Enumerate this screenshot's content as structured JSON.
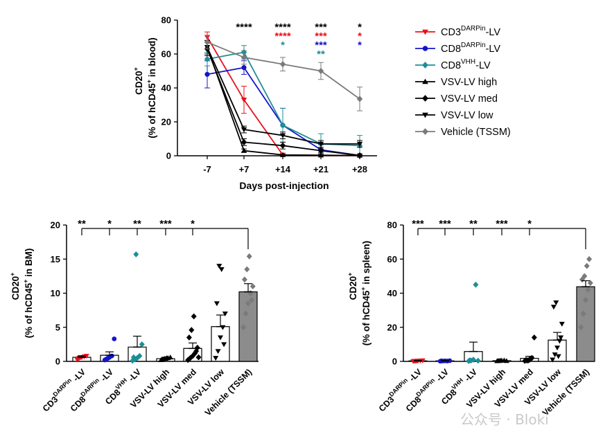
{
  "watermark": "公众号 · Bloki",
  "colors": {
    "red": "#e8101c",
    "blue": "#1414c8",
    "teal": "#1e8e96",
    "black": "#000000",
    "grey": "#7a7a7a",
    "bar_fill": "#8c8c8c"
  },
  "chart_data": [
    {
      "id": "blood",
      "type": "line",
      "ylabel_line1": "CD20",
      "ylabel_sup1": "+",
      "ylabel_line2a": "(% of hCD45",
      "ylabel_sup2": "+",
      "ylabel_line2b": " in blood)",
      "xlabel": "Days post-injection",
      "ylim": [
        0,
        80
      ],
      "yticks": [
        "0",
        "20",
        "40",
        "60",
        "80"
      ],
      "x": [
        "-7",
        "+7",
        "+14",
        "+21",
        "+28"
      ],
      "series": [
        {
          "name": "CD3DARPin-LV",
          "label_main": "CD3",
          "label_sup": "DARPin",
          "label_tail": "-LV",
          "color": "#e8101c",
          "marker": "tri-down",
          "values": [
            70,
            33,
            0.5,
            0.3,
            0.2
          ],
          "err": [
            3,
            8,
            0.5,
            0.5,
            0.3
          ]
        },
        {
          "name": "CD8DARPin-LV",
          "label_main": "CD8",
          "label_sup": "DARPin",
          "label_tail": "-LV",
          "color": "#1414c8",
          "marker": "circle",
          "values": [
            48,
            52,
            18,
            3.5,
            0.2
          ],
          "err": [
            8,
            4,
            10,
            3,
            0.3
          ]
        },
        {
          "name": "CD8VHH-LV",
          "label_main": "CD8",
          "label_sup": "VHH",
          "label_tail": "-LV",
          "color": "#1e8e96",
          "marker": "diamond",
          "values": [
            57,
            61,
            18,
            7,
            6
          ],
          "err": [
            4,
            4,
            10,
            6,
            6
          ]
        },
        {
          "name": "VSV-LV high",
          "label_main": "VSV-LV high",
          "label_sup": "",
          "label_tail": "",
          "color": "#000000",
          "marker": "tri-up",
          "values": [
            64,
            3,
            0.5,
            0.3,
            0.2
          ],
          "err": [
            4,
            1,
            0.3,
            0.3,
            0.2
          ]
        },
        {
          "name": "VSV-LV med",
          "label_main": "VSV-LV med",
          "label_sup": "",
          "label_tail": "",
          "color": "#000000",
          "marker": "diamond",
          "values": [
            63,
            8,
            6,
            3,
            0.2
          ],
          "err": [
            4,
            2,
            2,
            1,
            0.2
          ]
        },
        {
          "name": "VSV-LV low",
          "label_main": "VSV-LV low",
          "label_sup": "",
          "label_tail": "",
          "color": "#000000",
          "marker": "tri-down",
          "values": [
            64,
            15.5,
            12,
            7,
            7
          ],
          "err": [
            4,
            2,
            2,
            2,
            2
          ]
        },
        {
          "name": "Vehicle (TSSM)",
          "label_main": "Vehicle (TSSM)",
          "label_sup": "",
          "label_tail": "",
          "color": "#7a7a7a",
          "marker": "diamond",
          "values": [
            67,
            58,
            54,
            50,
            33.5
          ],
          "err": [
            4,
            4,
            4,
            5,
            7
          ]
        }
      ],
      "significance": [
        {
          "x": "+7",
          "row": 0,
          "text": "****",
          "color": "#000000"
        },
        {
          "x": "+14",
          "row": 0,
          "text": "****",
          "color": "#000000"
        },
        {
          "x": "+14",
          "row": 1,
          "text": "****",
          "color": "#e8101c"
        },
        {
          "x": "+14",
          "row": 2,
          "text": "*",
          "color": "#1e8e96"
        },
        {
          "x": "+21",
          "row": 0,
          "text": "***",
          "color": "#000000"
        },
        {
          "x": "+21",
          "row": 1,
          "text": "***",
          "color": "#e8101c"
        },
        {
          "x": "+21",
          "row": 2,
          "text": "***",
          "color": "#1414c8"
        },
        {
          "x": "+21",
          "row": 3,
          "text": "**",
          "color": "#1e8e96"
        },
        {
          "x": "+28",
          "row": 0,
          "text": "*",
          "color": "#000000"
        },
        {
          "x": "+28",
          "row": 1,
          "text": "*",
          "color": "#e8101c"
        },
        {
          "x": "+28",
          "row": 2,
          "text": "*",
          "color": "#1414c8"
        }
      ]
    },
    {
      "id": "bm",
      "type": "bar",
      "ylabel_line1": "CD20",
      "ylabel_sup1": "+",
      "ylabel_line2a": "(% of hCD45",
      "ylabel_sup2": "+",
      "ylabel_line2b": " in BM)",
      "ylim": [
        0,
        20
      ],
      "yticks": [
        "0",
        "5",
        "10",
        "15",
        "20"
      ],
      "categories": [
        {
          "main": "CD3",
          "sup": "DARPin",
          "tail": " -LV"
        },
        {
          "main": "CD8",
          "sup": "DARPin",
          "tail": " -LV"
        },
        {
          "main": "CD8",
          "sup": "VHH",
          "tail": " -LV"
        },
        {
          "main": "VSV-LV high",
          "sup": "",
          "tail": ""
        },
        {
          "main": "VSV-LV med",
          "sup": "",
          "tail": ""
        },
        {
          "main": "VSV-LV low",
          "sup": "",
          "tail": ""
        },
        {
          "main": "Vehicle (TSSM)",
          "sup": "",
          "tail": ""
        }
      ],
      "values": [
        0.6,
        0.9,
        2.1,
        0.4,
        1.9,
        5.1,
        10.2
      ],
      "sem": [
        0.2,
        0.5,
        1.6,
        0.2,
        0.8,
        1.7,
        1.2
      ],
      "points": [
        [
          0.3,
          0.5,
          0.6,
          0.7,
          0.8,
          0.4,
          0.6
        ],
        [
          0.2,
          0.4,
          0.6,
          0.8,
          3.3,
          0.3,
          0.5
        ],
        [
          0.1,
          0.3,
          0.5,
          0.8,
          2.5,
          0.6,
          15.7
        ],
        [
          0.2,
          0.3,
          0.4,
          0.5,
          0.6,
          0.3,
          0.4,
          0.5
        ],
        [
          0.2,
          0.5,
          0.8,
          1.2,
          2.0,
          3.5,
          4.6,
          6.6,
          1.5,
          0.6
        ],
        [
          0.5,
          1.5,
          3.5,
          5.0,
          7.0,
          8.5,
          14.0,
          13.5,
          2.5
        ],
        [
          5.0,
          7.0,
          8.5,
          10.0,
          11.0,
          12.0,
          13.5,
          15.4,
          9.0
        ]
      ],
      "significance": [
        "**",
        "*",
        "**",
        "***",
        "*"
      ]
    },
    {
      "id": "spleen",
      "type": "bar",
      "ylabel_line1": "CD20",
      "ylabel_sup1": "+",
      "ylabel_line2a": "(% of hCD45",
      "ylabel_sup2": "+",
      "ylabel_line2b": " in spleen)",
      "ylim": [
        0,
        80
      ],
      "yticks": [
        "0",
        "20",
        "40",
        "60",
        "80"
      ],
      "categories": [
        {
          "main": "CD3",
          "sup": "DARPin",
          "tail": " -LV"
        },
        {
          "main": "CD8",
          "sup": "DARPin",
          "tail": " -LV"
        },
        {
          "main": "CD8",
          "sup": "VHH",
          "tail": " -LV"
        },
        {
          "main": "VSV-LV high",
          "sup": "",
          "tail": ""
        },
        {
          "main": "VSV-LV med",
          "sup": "",
          "tail": ""
        },
        {
          "main": "VSV-LV low",
          "sup": "",
          "tail": ""
        },
        {
          "main": "Vehicle (TSSM)",
          "sup": "",
          "tail": ""
        }
      ],
      "values": [
        0.3,
        0.3,
        5.8,
        0.4,
        1.8,
        12.5,
        43.8
      ],
      "sem": [
        0.2,
        0.2,
        5.5,
        0.2,
        1.2,
        4.5,
        3.5
      ],
      "points": [
        [
          0.1,
          0.2,
          0.3,
          0.4,
          0.5,
          0.2,
          0.3
        ],
        [
          0.1,
          0.2,
          0.3,
          0.2,
          0.4,
          0.3
        ],
        [
          0.2,
          0.5,
          1.0,
          45.0,
          0.4,
          0.6
        ],
        [
          0.2,
          0.3,
          0.5,
          0.6,
          0.3,
          0.4,
          0.5
        ],
        [
          0.3,
          0.5,
          1.0,
          2.0,
          14.0,
          0.8,
          0.6
        ],
        [
          1.0,
          4.0,
          8.0,
          12.0,
          22.0,
          32.0,
          34.5,
          3.0,
          14.0
        ],
        [
          20.0,
          28.0,
          36.0,
          42.0,
          46.0,
          48.0,
          50.0,
          56.0,
          60.0
        ]
      ],
      "significance": [
        "***",
        "***",
        "**",
        "***",
        "*"
      ]
    }
  ]
}
